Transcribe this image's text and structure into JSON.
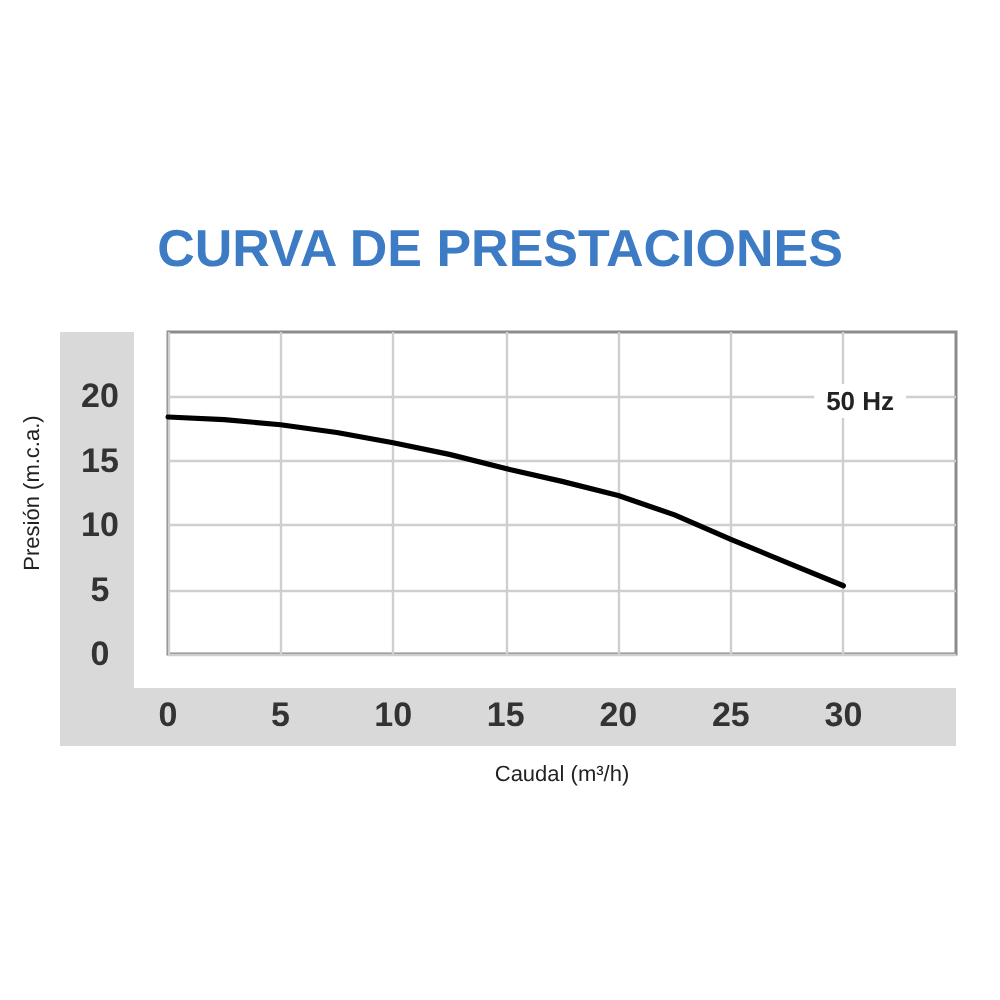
{
  "chart_data": {
    "type": "line",
    "title": "CURVA DE PRESTACIONES",
    "xlabel": "Caudal (m³/h)",
    "ylabel": "Presión (m.c.a.)",
    "annotations": [
      "50 Hz"
    ],
    "x": [
      0,
      2.5,
      5,
      7.5,
      10,
      12.5,
      15,
      17.5,
      20,
      22.5,
      25,
      27.5,
      30
    ],
    "series": [
      {
        "color": "#000000",
        "values": [
          18.4,
          18.2,
          17.8,
          17.2,
          16.4,
          15.5,
          14.4,
          13.4,
          12.3,
          10.8,
          8.9,
          7.1,
          5.3
        ]
      }
    ],
    "xlim": [
      0,
      35
    ],
    "xticks": [
      0,
      5,
      10,
      15,
      20,
      25,
      30
    ],
    "ylim": [
      0,
      25
    ],
    "yticks": [
      0,
      5,
      10,
      15,
      20
    ],
    "grid": true,
    "marker": "none",
    "line_style": "solid"
  }
}
